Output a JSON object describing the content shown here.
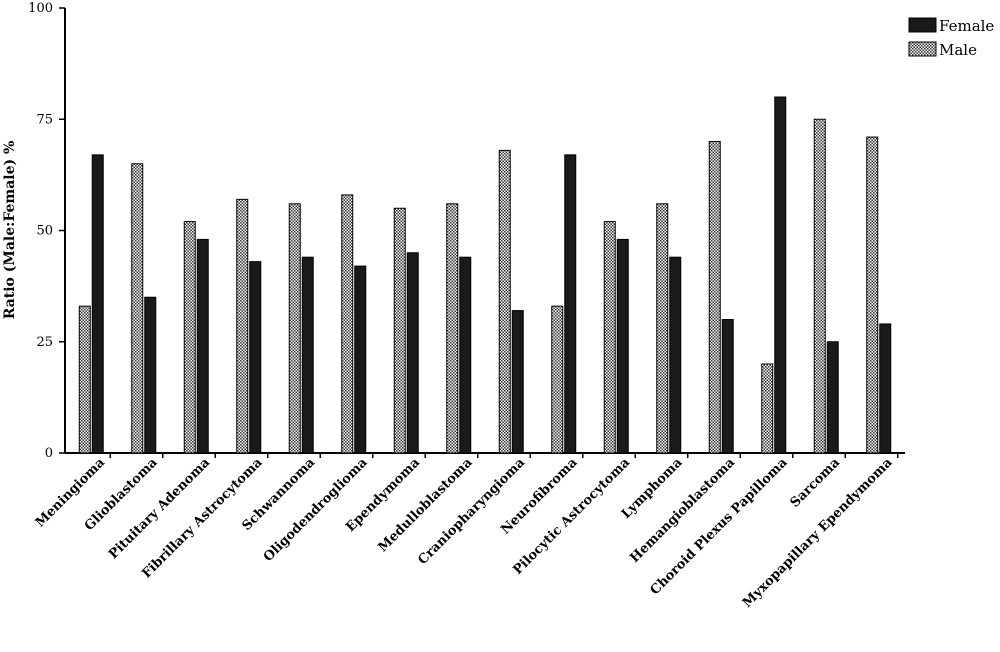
{
  "chart_data": {
    "type": "bar",
    "title": "",
    "xlabel": "",
    "ylabel": "Ratio (Male:Female) %",
    "ylim": [
      0,
      100
    ],
    "yticks": [
      "0",
      "25",
      "50",
      "75",
      "100"
    ],
    "categories": [
      "Meningioma",
      "Glioblastoma",
      "Pituitary Adenoma",
      "Fibrillary Astrocytoma",
      "Schwannoma",
      "Oligodendroglioma",
      "Ependymoma",
      "Medulloblastoma",
      "Craniopharyngioma",
      "Neurofibroma",
      "Pilocytic Astrocytoma",
      "Lymphoma",
      "Hemangioblastoma",
      "Choroid Plexus Papilloma",
      "Sarcoma",
      "Myxopapillary Ependymoma"
    ],
    "series": [
      {
        "name": "Male",
        "pattern": "checkered",
        "values": [
          33,
          65,
          52,
          57,
          56,
          58,
          55,
          56,
          68,
          33,
          52,
          56,
          70,
          20,
          75,
          71
        ]
      },
      {
        "name": "Female",
        "pattern": "solid",
        "values": [
          67,
          35,
          48,
          43,
          44,
          42,
          45,
          44,
          32,
          67,
          48,
          44,
          30,
          80,
          25,
          29
        ]
      }
    ],
    "legend": {
      "position": "top-right",
      "items": [
        "Female",
        "Male"
      ]
    },
    "grid": false,
    "colors": {
      "female": "#1a1a1a",
      "male_light": "#ffffff",
      "male_dark": "#333333",
      "axis": "#000000"
    }
  }
}
